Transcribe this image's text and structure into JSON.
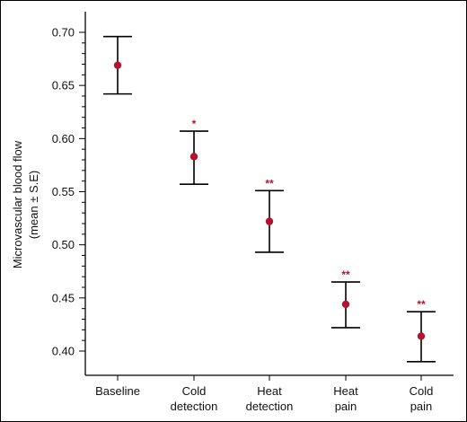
{
  "chart_data": {
    "type": "scatter",
    "title": "",
    "xlabel": "",
    "ylabel": [
      "Microvascular blood flow",
      "(mean ± S.E)"
    ],
    "ylim": [
      0.38,
      0.72
    ],
    "yticks": [
      "0.40",
      "0.45",
      "0.50",
      "0.55",
      "0.60",
      "0.65",
      "0.70"
    ],
    "grid": false,
    "categories": [
      [
        "Baseline"
      ],
      [
        "Cold",
        "detection"
      ],
      [
        "Heat",
        "detection"
      ],
      [
        "Heat",
        "pain"
      ],
      [
        "Cold",
        "pain"
      ]
    ],
    "series": [
      {
        "mean": [
          0.669,
          0.583,
          0.522,
          0.444,
          0.414
        ],
        "upper": [
          0.696,
          0.607,
          0.551,
          0.465,
          0.437
        ],
        "lower": [
          0.642,
          0.557,
          0.493,
          0.422,
          0.39
        ],
        "significance": [
          "",
          "*",
          "**",
          "**",
          "**"
        ]
      }
    ],
    "colors": {
      "point": "#b5122f",
      "significance": "#b5122f",
      "errorbar": "#000000",
      "axis": "#000000"
    }
  }
}
